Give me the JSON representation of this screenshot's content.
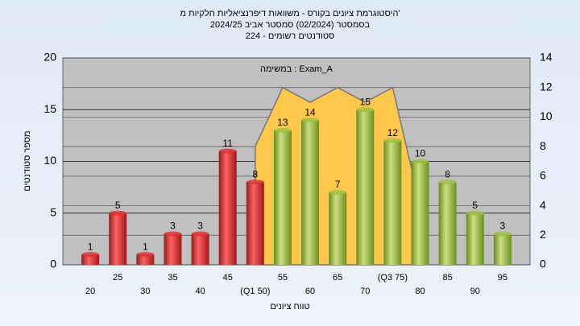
{
  "chart_data": {
    "type": "bar",
    "title": [
      "היסטוגרמת ציונים בקורס - משוואות דיפרנציאליות חלקיות מ'",
      "בסמסטר  (02/2024)  סמסטר אביב 2024/25",
      "סטודנטים רשומים - 224"
    ],
    "annotation": "במשימה : Exam_A",
    "x_label": "טווח ציונים",
    "y_label": "מספר סטודנטים",
    "categories": [
      "20",
      "25",
      "30",
      "35",
      "40",
      "45",
      "(Q1 50)",
      "55",
      "60",
      "65",
      "70",
      "(Q3 75)",
      "80",
      "85",
      "90",
      "95"
    ],
    "series": [
      {
        "colors": [
          "#e03030",
          "#e03030",
          "#e03030",
          "#e03030",
          "#e03030",
          "#e03030",
          "#e03030",
          "#9cc040",
          "#9cc040",
          "#9cc040",
          "#9cc040",
          "#9cc040",
          "#9cc040",
          "#9cc040",
          "#9cc040",
          "#9cc040"
        ],
        "values": [
          1,
          5,
          1,
          3,
          3,
          11,
          8,
          13,
          14,
          7,
          15,
          12,
          10,
          8,
          5,
          3
        ]
      },
      {
        "type": "area",
        "axis": "y2",
        "color": "#ffc84a",
        "values": [
          null,
          null,
          null,
          null,
          null,
          null,
          8,
          12,
          11,
          12,
          11,
          12,
          4,
          null,
          null,
          null
        ]
      }
    ],
    "ylim": [
      0,
      20
    ],
    "yticks": [
      0,
      5,
      10,
      15,
      20
    ],
    "y2lim": [
      0,
      14
    ],
    "y2ticks": [
      0,
      2,
      4,
      6,
      8,
      10,
      12,
      14
    ],
    "grid": true
  }
}
